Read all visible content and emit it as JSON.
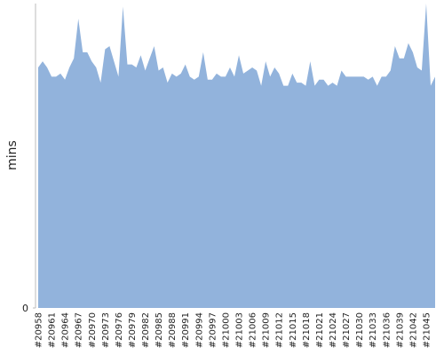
{
  "chart_data": {
    "type": "area",
    "y_label": "mins",
    "color": "#92b3dc",
    "categories": [
      "#20958",
      null,
      null,
      "#20961",
      null,
      null,
      "#20964",
      null,
      null,
      "#20967",
      null,
      null,
      "#20970",
      null,
      null,
      "#20973",
      null,
      null,
      "#20976",
      null,
      null,
      "#20979",
      null,
      null,
      "#20982",
      null,
      null,
      "#20985",
      null,
      null,
      "#20988",
      null,
      null,
      "#20991",
      null,
      null,
      "#20994",
      null,
      null,
      "#20997",
      null,
      null,
      "#21000",
      null,
      null,
      "#21003",
      null,
      null,
      "#21006",
      null,
      null,
      "#21009",
      null,
      null,
      "#21012",
      null,
      null,
      "#21015",
      null,
      null,
      "#21018",
      null,
      null,
      "#21021",
      null,
      null,
      "#21024",
      null,
      null,
      "#21027",
      null,
      null,
      "#21030",
      null,
      null,
      "#21033",
      null,
      null,
      "#21036",
      null,
      null,
      "#21039",
      null,
      null,
      "#21042",
      null,
      null,
      "#21045",
      null,
      null
    ],
    "values": [
      79,
      81,
      79,
      76,
      76,
      77,
      75,
      79,
      82,
      95,
      84,
      84,
      81,
      79,
      74,
      85,
      86,
      81,
      76,
      99,
      80,
      80,
      79,
      83,
      78,
      82,
      86,
      78,
      79,
      74,
      77,
      76,
      77,
      80,
      76,
      75,
      76,
      84,
      75,
      75,
      77,
      76,
      76,
      79,
      76,
      83,
      77,
      78,
      79,
      78,
      73,
      81,
      76,
      79,
      77,
      73,
      73,
      77,
      74,
      74,
      73,
      81,
      73,
      75,
      75,
      73,
      74,
      73,
      78,
      76,
      76,
      76,
      76,
      76,
      75,
      76,
      73,
      76,
      76,
      78,
      86,
      82,
      82,
      87,
      84,
      79,
      78,
      100,
      73,
      76
    ],
    "ylim": [
      0,
      100
    ],
    "yticks": [
      0
    ]
  }
}
